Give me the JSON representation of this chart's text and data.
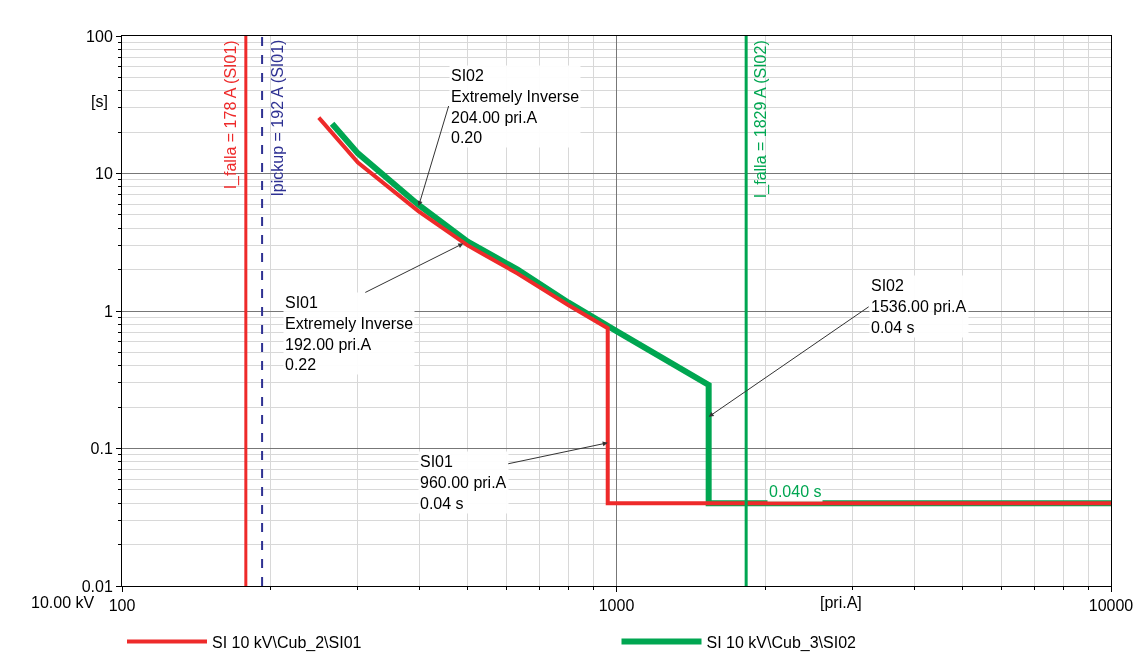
{
  "chart_data": {
    "type": "line",
    "xlabel": "[pri.A]",
    "ylabel": "[s]",
    "log": "xy",
    "grid": true,
    "legend": "bottom",
    "marker": "none",
    "line_style": "solid",
    "xlim": [
      100,
      10000
    ],
    "xticks": [
      100,
      1000,
      10000
    ],
    "ylim": [
      0.01,
      100
    ],
    "yticks": [
      0.01,
      0.1,
      1,
      10,
      100
    ],
    "series": [
      {
        "name": "SI 10 kV\\Cub_2\\SI01",
        "color": "#ee2a2a",
        "x": [
          250,
          300,
          398,
          500,
          631,
          800,
          960,
          960,
          10000
        ],
        "values": [
          25.5,
          12,
          5.3,
          3.0,
          1.87,
          1.1,
          0.75,
          0.04,
          0.04
        ]
      },
      {
        "name": "SI 10 kV\\Cub_3\\SI02",
        "color": "#00a651",
        "x": [
          266,
          300,
          398,
          500,
          631,
          800,
          996,
          1536,
          1536,
          10000
        ],
        "values": [
          23,
          14,
          5.9,
          3.2,
          2.0,
          1.15,
          0.72,
          0.29,
          0.04,
          0.04
        ]
      }
    ],
    "ref_lines": [
      {
        "axis": "x",
        "value": 178,
        "label": "I_falla = 178 A (SI01)",
        "color": "#ee2a2a",
        "line_style": "solid"
      },
      {
        "axis": "x",
        "value": 192,
        "label": "Ipickup = 192 A (SI01)",
        "color": "#2e3192",
        "line_style": "dashed"
      },
      {
        "axis": "x",
        "value": 1829,
        "label": "I_falla = 1829 A (SI02)",
        "color": "#00a651",
        "line_style": "solid"
      }
    ],
    "annotations": [
      {
        "text": "SI02\nExtremely Inverse\n204.00 pri.A\n0.20",
        "x": 398,
        "y": 5.8
      },
      {
        "text": "SI01\nExtremely Inverse\n192.00 pri.A\n0.22",
        "x": 490,
        "y": 3.1
      },
      {
        "text": "SI02\n1536.00 pri.A\n0.04 s",
        "x": 1536,
        "y": 0.17
      },
      {
        "text": "SI01\n960.00 pri.A\n0.04 s",
        "x": 960,
        "y": 0.11
      },
      {
        "text": "0.040 s",
        "x": 2300,
        "y": 0.04
      },
      "10.00 kV"
    ]
  }
}
